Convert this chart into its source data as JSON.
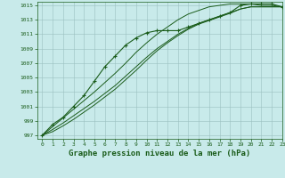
{
  "title": "Graphe pression niveau de la mer (hPa)",
  "bg_color": "#c8eaea",
  "grid_color": "#9bbfbf",
  "line_color": "#1a5c1a",
  "xlim": [
    -0.5,
    23
  ],
  "ylim": [
    996.5,
    1015.5
  ],
  "yticks": [
    997,
    999,
    1001,
    1003,
    1005,
    1007,
    1009,
    1011,
    1013,
    1015
  ],
  "xticks": [
    0,
    1,
    2,
    3,
    4,
    5,
    6,
    7,
    8,
    9,
    10,
    11,
    12,
    13,
    14,
    15,
    16,
    17,
    18,
    19,
    20,
    21,
    22,
    23
  ],
  "series_marked": [
    997.0,
    998.5,
    999.5,
    1001.0,
    1002.5,
    1004.5,
    1006.5,
    1008.0,
    1009.5,
    1010.5,
    1011.2,
    1011.5,
    1011.5,
    1011.5,
    1012.0,
    1012.5,
    1013.0,
    1013.5,
    1014.0,
    1015.0,
    1015.2,
    1015.2,
    1015.2,
    1014.8
  ],
  "series2": [
    997.0,
    997.8,
    998.7,
    999.7,
    1000.7,
    1001.7,
    1002.8,
    1003.9,
    1005.2,
    1006.5,
    1007.8,
    1009.0,
    1010.0,
    1011.0,
    1011.8,
    1012.5,
    1013.0,
    1013.5,
    1014.0,
    1014.5,
    1014.8,
    1014.8,
    1014.8,
    1014.8
  ],
  "series3": [
    997.0,
    997.5,
    998.3,
    999.2,
    1000.2,
    1001.2,
    1002.3,
    1003.4,
    1004.7,
    1006.0,
    1007.4,
    1008.7,
    1009.8,
    1010.8,
    1011.7,
    1012.4,
    1012.9,
    1013.4,
    1013.9,
    1014.5,
    1014.8,
    1014.8,
    1014.8,
    1014.8
  ],
  "series4": [
    997.0,
    998.2,
    999.4,
    1000.6,
    1001.8,
    1003.0,
    1004.3,
    1005.6,
    1007.0,
    1008.5,
    1009.8,
    1011.0,
    1012.0,
    1013.0,
    1013.8,
    1014.3,
    1014.8,
    1015.0,
    1015.2,
    1015.2,
    1015.2,
    1015.0,
    1015.0,
    1014.8
  ],
  "title_fontsize": 6.5
}
